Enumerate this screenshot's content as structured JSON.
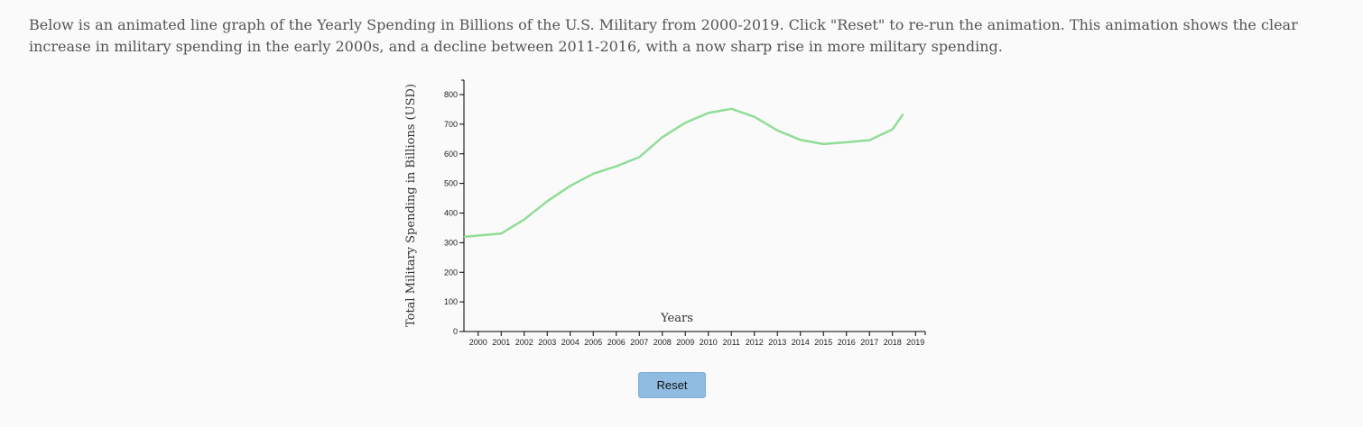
{
  "intro_text": "Below is an animated line graph of the Yearly Spending in Billions of the U.S. Military from 2000-2019. Click \"Reset\" to re-run the animation. This animation shows the clear increase in military spending in the early 2000s, and a decline between 2011-2016, with a now sharp rise in more military spending.",
  "reset_label": "Reset",
  "chart_data": {
    "type": "line",
    "xlabel": "Years",
    "ylabel": "Total Military Spending in Billions (USD)",
    "ylim": [
      0,
      800
    ],
    "y_ticks": [
      "0",
      "100",
      "200",
      "300",
      "400",
      "500",
      "600",
      "700",
      "800"
    ],
    "categories": [
      "2000",
      "2001",
      "2002",
      "2003",
      "2004",
      "2005",
      "2006",
      "2007",
      "2008",
      "2009",
      "2010",
      "2011",
      "2012",
      "2013",
      "2014",
      "2015",
      "2016",
      "2017",
      "2018",
      "2019"
    ],
    "series": [
      {
        "values": [
          320,
          331,
          378,
          440,
          492,
          533,
          558,
          589,
          656,
          705,
          738,
          752,
          725,
          679,
          647,
          633,
          639,
          646,
          683,
          732
        ]
      }
    ],
    "line_color": "#90dd97",
    "grid": false
  }
}
